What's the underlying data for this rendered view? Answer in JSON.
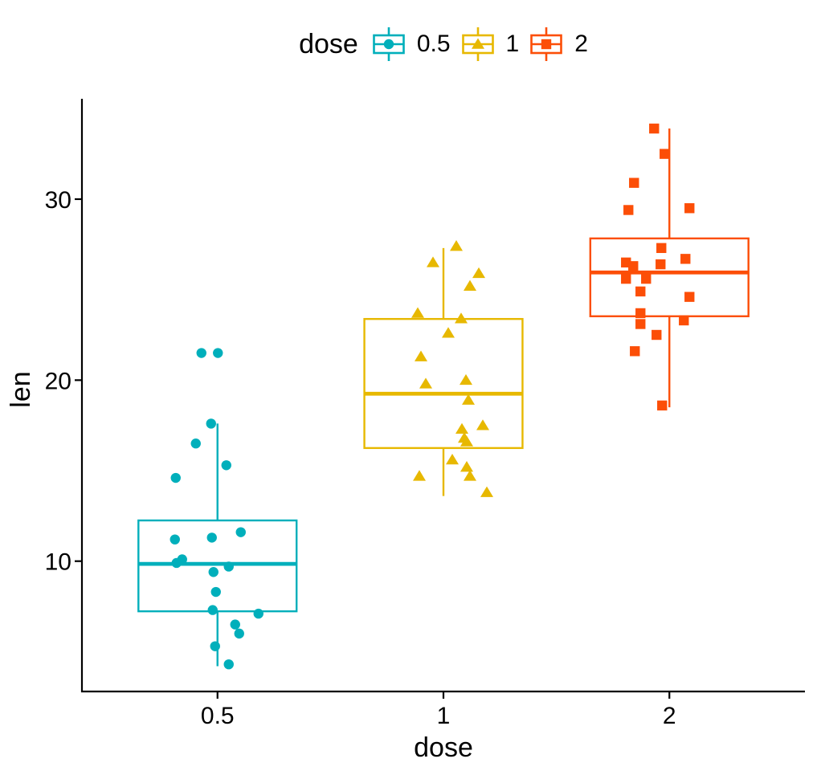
{
  "chart_data": {
    "type": "boxplot",
    "title": "",
    "xlabel": "dose",
    "ylabel": "len",
    "x_ticks": [
      "0.5",
      "1",
      "2"
    ],
    "y_ticks": [
      "10",
      "20",
      "30"
    ],
    "y_tick_values": [
      10,
      20,
      30
    ],
    "ylim": [
      2.8,
      35.5
    ],
    "grid": "off",
    "background": "#ffffff",
    "axis_color": "#000000",
    "legend": {
      "title": "dose",
      "position": "top"
    },
    "groups": [
      {
        "label": "0.5",
        "color": "#00AFBB",
        "shape": "circle",
        "values": [
          4.2,
          11.5,
          7.3,
          5.8,
          6.4,
          10.0,
          11.2,
          11.2,
          5.2,
          7.0,
          15.2,
          21.5,
          17.6,
          9.7,
          14.5,
          10.0,
          8.2,
          9.4,
          16.5,
          9.7
        ],
        "box": {
          "whisker_low": 4.2,
          "q1": 7.23,
          "median": 9.85,
          "q3": 12.25,
          "whisker_high": 17.6
        },
        "points": [
          [
            -20,
            21.5
          ],
          [
            0.5,
            21.5
          ],
          [
            -8,
            17.6
          ],
          [
            -27,
            16.5
          ],
          [
            11,
            15.3
          ],
          [
            -52,
            14.6
          ],
          [
            29,
            11.6
          ],
          [
            -53,
            11.2
          ],
          [
            -7,
            11.3
          ],
          [
            -51,
            9.9
          ],
          [
            -44,
            10.1
          ],
          [
            14,
            9.7
          ],
          [
            -5,
            9.4
          ],
          [
            -2,
            8.3
          ],
          [
            -6,
            7.3
          ],
          [
            51,
            7.1
          ],
          [
            22,
            6.5
          ],
          [
            27,
            6.0
          ],
          [
            -3,
            5.3
          ],
          [
            14,
            4.3
          ]
        ]
      },
      {
        "label": "1",
        "color": "#E7B800",
        "shape": "triangle",
        "values": [
          16.5,
          16.5,
          15.2,
          17.3,
          22.5,
          17.3,
          13.6,
          14.5,
          18.8,
          15.5,
          19.7,
          23.3,
          23.6,
          26.4,
          20.0,
          25.2,
          25.8,
          21.2,
          14.5,
          27.3
        ],
        "box": {
          "whisker_low": 13.6,
          "q1": 16.25,
          "median": 19.25,
          "q3": 23.38,
          "whisker_high": 27.3
        },
        "points": [
          [
            16,
            27.4
          ],
          [
            -13,
            26.5
          ],
          [
            44,
            25.9
          ],
          [
            33,
            25.2
          ],
          [
            -32,
            23.7
          ],
          [
            22,
            23.4
          ],
          [
            6,
            22.6
          ],
          [
            -28,
            21.3
          ],
          [
            -22,
            19.8
          ],
          [
            28,
            20.0
          ],
          [
            31,
            18.9
          ],
          [
            23,
            17.3
          ],
          [
            49,
            17.5
          ],
          [
            29,
            16.6
          ],
          [
            26,
            16.8
          ],
          [
            11,
            15.6
          ],
          [
            29,
            15.2
          ],
          [
            33,
            14.7
          ],
          [
            -30,
            14.7
          ],
          [
            54,
            13.8
          ]
        ]
      },
      {
        "label": "2",
        "color": "#FC4E07",
        "shape": "square",
        "values": [
          23.6,
          18.5,
          33.9,
          25.5,
          26.4,
          32.5,
          26.7,
          21.5,
          23.3,
          29.5,
          25.5,
          26.4,
          22.4,
          24.5,
          24.8,
          30.9,
          26.4,
          27.3,
          29.4,
          23.0
        ],
        "box": {
          "whisker_low": 18.5,
          "q1": 23.53,
          "median": 25.95,
          "q3": 27.83,
          "whisker_high": 33.9
        },
        "points": [
          [
            -19,
            33.9
          ],
          [
            -6,
            32.5
          ],
          [
            -44,
            30.9
          ],
          [
            -51,
            29.4
          ],
          [
            25,
            29.5
          ],
          [
            -10,
            27.3
          ],
          [
            20,
            26.7
          ],
          [
            -54,
            26.5
          ],
          [
            -45,
            26.3
          ],
          [
            -11,
            26.4
          ],
          [
            -54,
            25.6
          ],
          [
            -29,
            25.6
          ],
          [
            -36,
            24.9
          ],
          [
            25,
            24.6
          ],
          [
            -36,
            23.7
          ],
          [
            -36,
            23.1
          ],
          [
            18,
            23.3
          ],
          [
            -16,
            22.5
          ],
          [
            -43,
            21.6
          ],
          [
            -9,
            18.6
          ]
        ]
      }
    ]
  }
}
